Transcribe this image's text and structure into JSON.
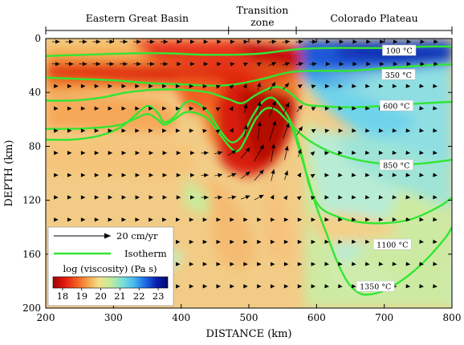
{
  "chart_data": {
    "type": "heatmap",
    "xlabel": "DISTANCE (km)",
    "ylabel": "DEPTH (km)",
    "xlim": [
      200,
      800
    ],
    "ylim": [
      0,
      200
    ],
    "y_inverted": true,
    "xticks": [
      200,
      300,
      400,
      500,
      600,
      700,
      800
    ],
    "yticks": [
      0,
      40,
      80,
      120,
      160,
      200
    ],
    "regions": [
      {
        "label": "Eastern Great Basin",
        "x_start": 200,
        "x_end": 470
      },
      {
        "label": "Transition zone",
        "line1": "Transition",
        "line2": "zone",
        "x_start": 470,
        "x_end": 570
      },
      {
        "label": "Colorado Plateau",
        "x_start": 570,
        "x_end": 800
      }
    ],
    "isotherms": [
      {
        "label": "100 °C",
        "label_x": 722,
        "label_y": 9,
        "points": [
          [
            200,
            13
          ],
          [
            260,
            12
          ],
          [
            330,
            11
          ],
          [
            380,
            11
          ],
          [
            430,
            12
          ],
          [
            480,
            12
          ],
          [
            520,
            11
          ],
          [
            570,
            8
          ],
          [
            620,
            7
          ],
          [
            700,
            7
          ],
          [
            760,
            6
          ],
          [
            800,
            6
          ]
        ]
      },
      {
        "label": "350 °C",
        "label_x": 721,
        "label_y": 27,
        "points": [
          [
            200,
            29
          ],
          [
            250,
            30
          ],
          [
            300,
            31
          ],
          [
            350,
            33
          ],
          [
            400,
            34
          ],
          [
            450,
            35
          ],
          [
            480,
            34
          ],
          [
            520,
            30
          ],
          [
            560,
            25
          ],
          [
            600,
            24
          ],
          [
            650,
            24
          ],
          [
            700,
            22
          ],
          [
            760,
            20
          ],
          [
            800,
            19
          ]
        ]
      },
      {
        "label": "600 °C",
        "label_x": 718,
        "label_y": 50,
        "points": [
          [
            200,
            46
          ],
          [
            240,
            46
          ],
          [
            280,
            44
          ],
          [
            320,
            40
          ],
          [
            360,
            38
          ],
          [
            400,
            38
          ],
          [
            440,
            40
          ],
          [
            470,
            45
          ],
          [
            490,
            48
          ],
          [
            510,
            42
          ],
          [
            530,
            37
          ],
          [
            545,
            36
          ],
          [
            560,
            40
          ],
          [
            580,
            48
          ],
          [
            600,
            50
          ],
          [
            650,
            51
          ],
          [
            700,
            50
          ],
          [
            760,
            48
          ],
          [
            800,
            47
          ]
        ]
      },
      {
        "label": "850 °C",
        "label_x": 718,
        "label_y": 94,
        "points": [
          [
            200,
            67
          ],
          [
            240,
            67
          ],
          [
            280,
            66
          ],
          [
            310,
            64
          ],
          [
            330,
            60
          ],
          [
            350,
            56
          ],
          [
            365,
            60
          ],
          [
            375,
            64
          ],
          [
            390,
            60
          ],
          [
            405,
            55
          ],
          [
            420,
            55
          ],
          [
            440,
            60
          ],
          [
            460,
            73
          ],
          [
            475,
            82
          ],
          [
            485,
            83
          ],
          [
            495,
            75
          ],
          [
            510,
            60
          ],
          [
            525,
            52
          ],
          [
            540,
            53
          ],
          [
            555,
            60
          ],
          [
            570,
            68
          ],
          [
            590,
            76
          ],
          [
            620,
            84
          ],
          [
            660,
            90
          ],
          [
            700,
            93
          ],
          [
            750,
            93
          ],
          [
            800,
            90
          ]
        ]
      },
      {
        "label": "1100 °C",
        "label_x": 712,
        "label_y": 153,
        "points": [
          [
            200,
            75
          ],
          [
            240,
            75
          ],
          [
            280,
            72
          ],
          [
            310,
            66
          ],
          [
            330,
            58
          ],
          [
            350,
            50
          ],
          [
            365,
            55
          ],
          [
            375,
            62
          ],
          [
            390,
            58
          ],
          [
            405,
            48
          ],
          [
            420,
            47
          ],
          [
            440,
            55
          ],
          [
            460,
            70
          ],
          [
            475,
            77
          ],
          [
            490,
            72
          ],
          [
            505,
            58
          ],
          [
            520,
            47
          ],
          [
            535,
            44
          ],
          [
            550,
            52
          ],
          [
            560,
            60
          ],
          [
            570,
            72
          ],
          [
            580,
            90
          ],
          [
            590,
            110
          ],
          [
            605,
            125
          ],
          [
            630,
            132
          ],
          [
            660,
            136
          ],
          [
            700,
            137
          ],
          [
            740,
            134
          ],
          [
            780,
            125
          ],
          [
            800,
            118
          ]
        ]
      },
      {
        "label": "1350 °C",
        "label_x": 687,
        "label_y": 184,
        "points": [
          [
            560,
            60
          ],
          [
            570,
            75
          ],
          [
            585,
            100
          ],
          [
            600,
            125
          ],
          [
            615,
            145
          ],
          [
            630,
            165
          ],
          [
            645,
            180
          ],
          [
            660,
            188
          ],
          [
            675,
            190
          ],
          [
            700,
            187
          ],
          [
            730,
            178
          ],
          [
            760,
            165
          ],
          [
            790,
            148
          ],
          [
            800,
            140
          ]
        ]
      }
    ],
    "velocity_scale": {
      "value": 20,
      "unit": "cm/yr",
      "label": "20 cm/yr"
    },
    "colorbar": {
      "title": "log (viscosity) (Pa s)",
      "min": 17.5,
      "max": 23.5,
      "ticks": [
        18,
        19,
        20,
        21,
        22,
        23
      ],
      "colors": [
        "#a40000",
        "#e01a10",
        "#f25a1e",
        "#f7a048",
        "#f3e08c",
        "#c4ec9a",
        "#7fe2d4",
        "#49bdf0",
        "#1f6ce8",
        "#0a20b0",
        "#000a6a"
      ]
    },
    "legend": {
      "velocity_label": "20 cm/yr",
      "isotherm_label": "Isotherm",
      "isotherm_color": "#32e632"
    },
    "colors": {
      "isotherm": "#32e632",
      "arrow": "#000000"
    }
  }
}
